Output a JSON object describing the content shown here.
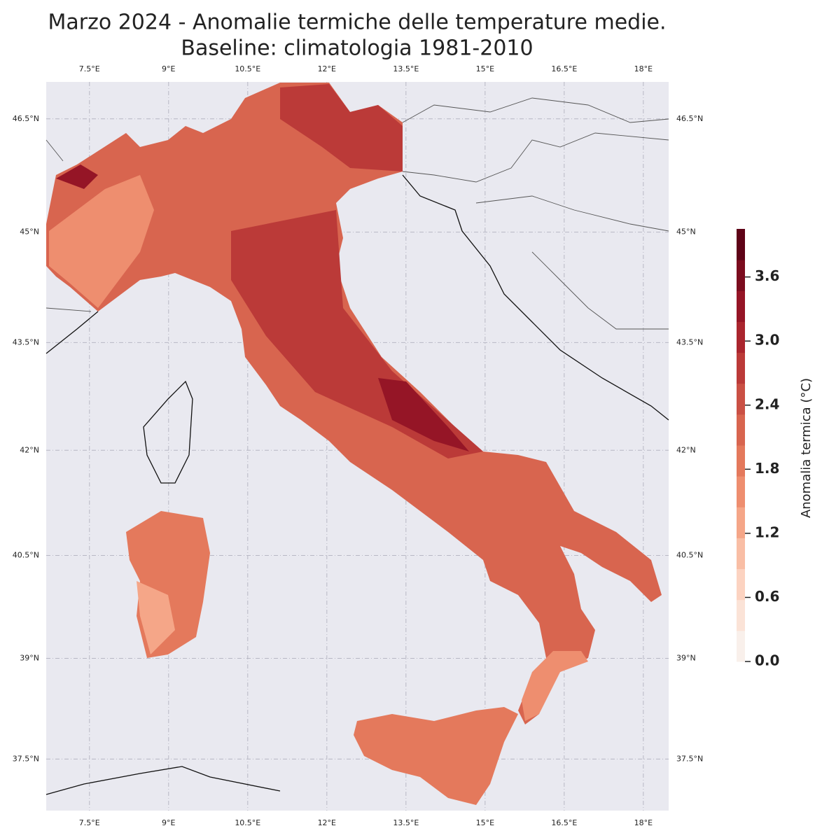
{
  "chart_data": {
    "type": "map",
    "title": "Marzo 2024 - Anomalie termiche delle temperature medie.",
    "subtitle": "Baseline: climatologia 1981-2010",
    "projection": "mercator",
    "xlim": [
      6.68,
      18.48
    ],
    "ylim": [
      36.72,
      46.98
    ],
    "xticks": [
      {
        "value": 7.5,
        "label": "7.5°E"
      },
      {
        "value": 9,
        "label": "9°E"
      },
      {
        "value": 10.5,
        "label": "10.5°E"
      },
      {
        "value": 12,
        "label": "12°E"
      },
      {
        "value": 13.5,
        "label": "13.5°E"
      },
      {
        "value": 15,
        "label": "15°E"
      },
      {
        "value": 16.5,
        "label": "16.5°E"
      },
      {
        "value": 18,
        "label": "18°E"
      }
    ],
    "yticks": [
      {
        "value": 37.5,
        "label": "37.5°N"
      },
      {
        "value": 39,
        "label": "39°N"
      },
      {
        "value": 40.5,
        "label": "40.5°N"
      },
      {
        "value": 42,
        "label": "42°N"
      },
      {
        "value": 43.5,
        "label": "43.5°N"
      },
      {
        "value": 45,
        "label": "45°N"
      },
      {
        "value": 46.5,
        "label": "46.5°N"
      }
    ],
    "grid": true,
    "colorbar": {
      "label": "Anomalia termica (°C)",
      "lim": [
        0,
        4.05
      ],
      "ticks": [
        {
          "value": 0,
          "label": "0.0"
        },
        {
          "value": 0.6,
          "label": "0.6"
        },
        {
          "value": 1.2,
          "label": "1.2"
        },
        {
          "value": 1.8,
          "label": "1.8"
        },
        {
          "value": 2.4,
          "label": "2.4"
        },
        {
          "value": 3,
          "label": "3.0"
        },
        {
          "value": 3.6,
          "label": "3.6"
        }
      ],
      "colors": [
        "#f9f0eb",
        "#fbe3d7",
        "#fcd3c1",
        "#f9bea5",
        "#f5a688",
        "#ee8e6f",
        "#e4795c",
        "#d8654f",
        "#ca5044",
        "#bb3a38",
        "#aa252e",
        "#951526",
        "#7b0c1e",
        "#5e0317"
      ]
    }
  }
}
